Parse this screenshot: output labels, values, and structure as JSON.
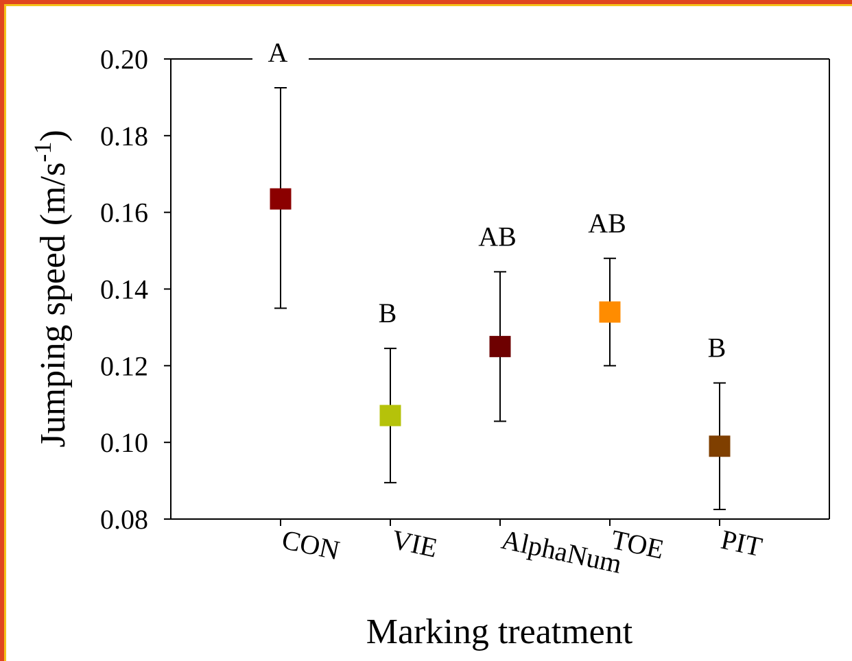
{
  "chart_data": {
    "type": "scatter",
    "xlabel": "Marking treatment",
    "ylabel_main": "Jumping speed (m/s",
    "ylabel_sup": "-1",
    "ylabel_close": ")",
    "ylim": [
      0.08,
      0.2
    ],
    "yticks": [
      "0.08",
      "0.10",
      "0.12",
      "0.14",
      "0.16",
      "0.18",
      "0.20"
    ],
    "grid": false,
    "legend": "none",
    "points": [
      {
        "category": "CON",
        "mean": 0.1635,
        "lower": 0.135,
        "upper": 0.1925,
        "letter": "A",
        "color": "#8b0000"
      },
      {
        "category": "VIE",
        "mean": 0.107,
        "lower": 0.0895,
        "upper": 0.1245,
        "letter": "B",
        "color": "#b5c20a"
      },
      {
        "category": "AlphaNum",
        "mean": 0.125,
        "lower": 0.1055,
        "upper": 0.1445,
        "letter": "AB",
        "color": "#6e0000"
      },
      {
        "category": "TOE",
        "mean": 0.134,
        "lower": 0.12,
        "upper": 0.148,
        "letter": "AB",
        "color": "#ff8c00"
      },
      {
        "category": "PIT",
        "mean": 0.099,
        "lower": 0.0825,
        "upper": 0.1155,
        "letter": "B",
        "color": "#7f3f00"
      }
    ]
  }
}
